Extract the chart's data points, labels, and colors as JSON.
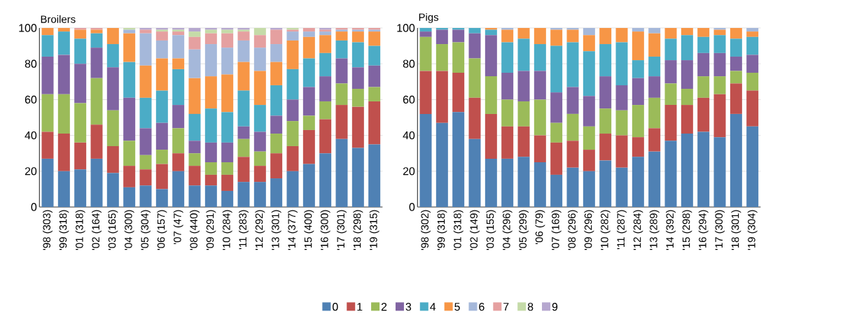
{
  "chart_data": [
    {
      "type": "bar",
      "stacked": true,
      "title": "Broilers",
      "grid": "y",
      "legend": "bottom",
      "categories": [
        "'98 (303)",
        "'99 (318)",
        "'01 (318)",
        "'02 (164)",
        "'03 (165)",
        "'04 (300)",
        "'05 (304)",
        "'06 (157)",
        "'07 (47)",
        "'08 (440)",
        "'09 (291)",
        "'10 (284)",
        "'11 (283)",
        "'12 (292)",
        "'13 (301)",
        "'14 (377)",
        "'15 (400)",
        "'16 (300)",
        "'17 (301)",
        "'18 (298)",
        "'19 (315)"
      ],
      "ylim": [
        0,
        100
      ],
      "yticks": [
        0,
        20,
        40,
        60,
        80,
        100
      ],
      "series": [
        {
          "name": "0",
          "color": "#4f81b4",
          "values": [
            27,
            20,
            21,
            27,
            19,
            11,
            12,
            10,
            20,
            12,
            12,
            9,
            14,
            14,
            16,
            20,
            24,
            30,
            38,
            33,
            35
          ]
        },
        {
          "name": "1",
          "color": "#c0504d",
          "values": [
            15,
            21,
            15,
            19,
            15,
            12,
            9,
            14,
            10,
            11,
            6,
            9,
            14,
            9,
            14,
            14,
            19,
            19,
            19,
            23,
            24
          ]
        },
        {
          "name": "2",
          "color": "#9bbb59",
          "values": [
            21,
            22,
            22,
            26,
            20,
            14,
            8,
            8,
            14,
            7,
            7,
            7,
            10,
            8,
            11,
            14,
            8,
            10,
            12,
            10,
            8
          ]
        },
        {
          "name": "3",
          "color": "#8064a2",
          "values": [
            21,
            22,
            22,
            17,
            24,
            24,
            15,
            15,
            13,
            7,
            11,
            11,
            7,
            11,
            10,
            12,
            16,
            14,
            14,
            12,
            12
          ]
        },
        {
          "name": "4",
          "color": "#4bacc6",
          "values": [
            12,
            13,
            14,
            8,
            13,
            20,
            17,
            18,
            20,
            15,
            19,
            17,
            20,
            15,
            17,
            17,
            16,
            13,
            10,
            14,
            11
          ]
        },
        {
          "name": "5",
          "color": "#f79646",
          "values": [
            4,
            2,
            5,
            2,
            9,
            16,
            18,
            18,
            6,
            20,
            18,
            21,
            16,
            19,
            13,
            16,
            12,
            10,
            5,
            6,
            8
          ]
        },
        {
          "name": "6",
          "color": "#a5b8da",
          "values": [
            0,
            0,
            0,
            0,
            0,
            2,
            18,
            10,
            13,
            16,
            18,
            15,
            12,
            13,
            10,
            5,
            3,
            2,
            1,
            1,
            1
          ]
        },
        {
          "name": "7",
          "color": "#e5a0a0",
          "values": [
            0,
            0,
            1,
            1,
            0,
            0,
            2,
            5,
            2,
            7,
            6,
            8,
            5,
            7,
            8,
            1,
            2,
            1,
            1,
            1,
            1
          ]
        },
        {
          "name": "8",
          "color": "#c5dba8",
          "values": [
            0,
            0,
            0,
            0,
            0,
            1,
            0,
            1,
            1,
            3,
            2,
            2,
            1,
            4,
            0,
            1,
            0,
            0,
            0,
            0,
            0
          ]
        },
        {
          "name": "9",
          "color": "#b6a7cf",
          "values": [
            0,
            0,
            0,
            0,
            0,
            0,
            1,
            1,
            1,
            2,
            1,
            1,
            1,
            0,
            1,
            0,
            0,
            1,
            0,
            0,
            0
          ]
        }
      ]
    },
    {
      "type": "bar",
      "stacked": true,
      "title": "Pigs",
      "grid": "y",
      "categories": [
        "'98 (302)",
        "'99 (318)",
        "'01 (318)",
        "'02 (149)",
        "'03 (155)",
        "'04 (296)",
        "'05 (299)",
        "'06 (79)",
        "'07 (169)",
        "'08 (296)",
        "'09 (296)",
        "'10 (282)",
        "'11 (287)",
        "'12 (284)",
        "'13 (289)",
        "'14 (392)",
        "'15 (298)",
        "'16 (294)",
        "'17 (300)",
        "'18 (301)",
        "'19 (304)"
      ],
      "ylim": [
        0,
        100
      ],
      "yticks": [
        0,
        20,
        40,
        60,
        80,
        100
      ],
      "series": [
        {
          "color": "#4f81b4",
          "values": [
            52,
            47,
            53,
            38,
            27,
            27,
            28,
            25,
            18,
            22,
            20,
            26,
            22,
            28,
            31,
            37,
            41,
            42,
            39,
            52,
            45
          ]
        },
        {
          "color": "#c0504d",
          "values": [
            24,
            29,
            22,
            23,
            25,
            18,
            17,
            15,
            18,
            15,
            12,
            15,
            18,
            11,
            13,
            20,
            16,
            19,
            24,
            17,
            20
          ]
        },
        {
          "color": "#9bbb59",
          "values": [
            19,
            15,
            17,
            22,
            21,
            15,
            14,
            20,
            11,
            15,
            13,
            14,
            14,
            18,
            17,
            12,
            9,
            12,
            10,
            7,
            10
          ]
        },
        {
          "color": "#8064a2",
          "values": [
            3,
            8,
            7,
            14,
            23,
            15,
            17,
            16,
            17,
            15,
            17,
            18,
            14,
            15,
            12,
            13,
            16,
            13,
            13,
            8,
            10
          ]
        },
        {
          "color": "#4bacc6",
          "values": [
            2,
            1,
            1,
            3,
            3,
            17,
            18,
            15,
            26,
            25,
            25,
            18,
            24,
            10,
            11,
            12,
            14,
            9,
            10,
            10,
            10
          ]
        },
        {
          "color": "#f79646",
          "values": [
            0,
            0,
            0,
            0,
            1,
            7,
            6,
            9,
            9,
            7,
            9,
            9,
            8,
            16,
            13,
            6,
            4,
            5,
            3,
            6,
            3
          ]
        },
        {
          "color": "#a5b8da",
          "values": [
            0,
            0,
            0,
            0,
            0,
            1,
            0,
            0,
            1,
            1,
            4,
            0,
            0,
            2,
            3,
            0,
            0,
            0,
            1,
            0,
            2
          ]
        }
      ]
    }
  ]
}
